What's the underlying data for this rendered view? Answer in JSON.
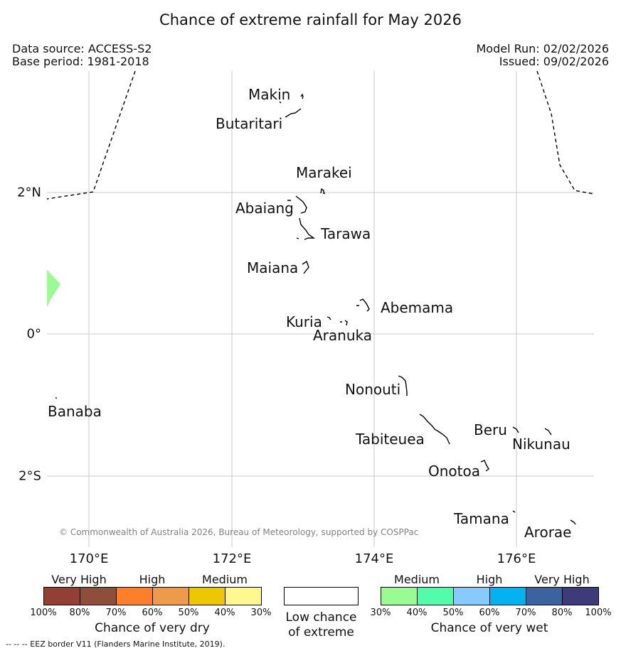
{
  "title": "Chance of extreme rainfall for May 2026",
  "meta_left": {
    "data_source": "Data source: ACCESS-S2",
    "base_period": "Base period: 1981-2018"
  },
  "meta_right": {
    "model_run": "Model Run: 02/02/2026",
    "issued": "Issued: 09/02/2026"
  },
  "islands": {
    "makin": "Makin",
    "butaritari": "Butaritari",
    "marakei": "Marakei",
    "abaiang": "Abaiang",
    "tarawa": "Tarawa",
    "maiana": "Maiana",
    "abemama": "Abemama",
    "kuria": "Kuria",
    "aranuka": "Aranuka",
    "banaba": "Banaba",
    "nonouti": "Nonouti",
    "tabiteuea": "Tabiteuea",
    "beru": "Beru",
    "nikunau": "Nikunau",
    "onotoa": "Onotoa",
    "tamana": "Tamana",
    "arorae": "Arorae"
  },
  "axes": {
    "longitudes": [
      "170°E",
      "172°E",
      "174°E",
      "176°E"
    ],
    "latitudes": [
      "2°N",
      "0°",
      "2°S"
    ]
  },
  "copyright": "© Commonwealth of Australia 2026, Bureau of Meteorology, supported by COSPPac",
  "legend": {
    "dry": {
      "categories": [
        "Very High",
        "High",
        "Medium"
      ],
      "percents": [
        "100%",
        "80%",
        "70%",
        "60%",
        "50%",
        "40%",
        "30%"
      ],
      "colors": [
        "#943f33",
        "#8e4f3a",
        "#fd7f2b",
        "#ed9b4b",
        "#eec704",
        "#fff88e"
      ],
      "title": "Chance of very dry"
    },
    "low": {
      "line1": "Low chance",
      "line2": "of extreme"
    },
    "wet": {
      "categories": [
        "Medium",
        "High",
        "Very High"
      ],
      "percents": [
        "30%",
        "40%",
        "50%",
        "60%",
        "70%",
        "80%",
        "100%"
      ],
      "colors": [
        "#9afb92",
        "#52fca8",
        "#87cafd",
        "#03b3f1",
        "#3b63a0",
        "#3d3b7a"
      ],
      "title": "Chance of very wet"
    }
  },
  "footnote": "--  --  -- EEZ border V11 (Flanders Marine Institute, 2019)."
}
